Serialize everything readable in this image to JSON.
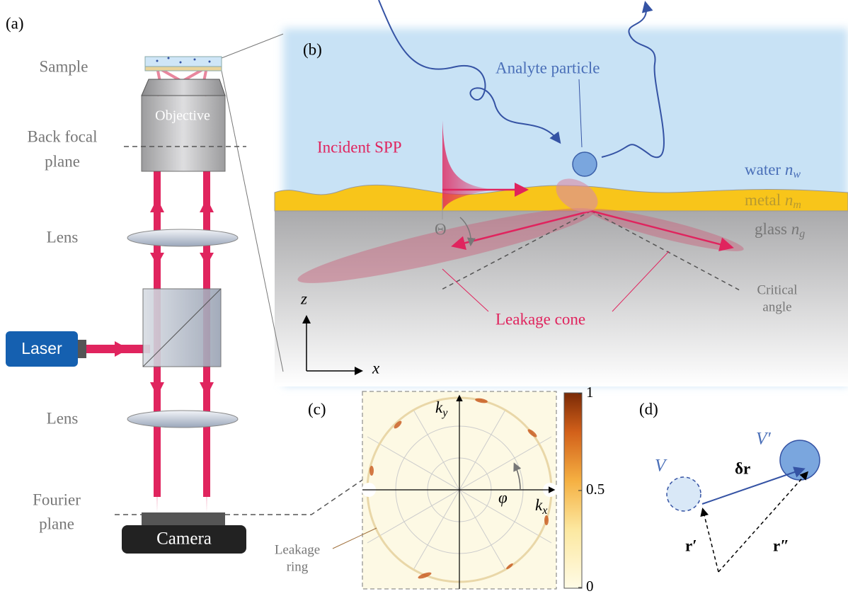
{
  "panel_a": {
    "label": "(a)",
    "sample": "Sample",
    "objective": "Objective",
    "back_focal_plane": [
      "Back focal",
      "plane"
    ],
    "lens_top": "Lens",
    "laser": "Laser",
    "lens_bottom": "Lens",
    "fourier_plane": [
      "Fourier",
      "plane"
    ],
    "camera": "Camera"
  },
  "panel_b": {
    "label": "(b)",
    "analyte_particle": "Analyte particle",
    "incident_spp": "Incident SPP",
    "water": {
      "name": "water",
      "symbol": "n",
      "subscript": "w"
    },
    "metal": {
      "name": "metal",
      "symbol": "n",
      "subscript": "m"
    },
    "glass": {
      "name": "glass",
      "symbol": "n",
      "subscript": "g"
    },
    "theta": "Θ",
    "z_axis": "z",
    "x_axis": "x",
    "leakage_cone": "Leakage cone",
    "critical_angle": [
      "Critical",
      "angle"
    ]
  },
  "panel_c": {
    "label": "(c)",
    "ky": {
      "symbol": "k",
      "subscript": "y"
    },
    "kx": {
      "symbol": "k",
      "subscript": "x"
    },
    "phi": "φ",
    "leakage_ring": [
      "Leakage",
      "ring"
    ],
    "colorbar": {
      "lim": [
        0,
        1
      ],
      "ticks": [
        0,
        0.5,
        1
      ]
    }
  },
  "panel_d": {
    "label": "(d)",
    "v": "V",
    "v_prime": "V′",
    "delta_r": "δr",
    "r_prime": "r′",
    "r_double_prime": "r″"
  }
}
